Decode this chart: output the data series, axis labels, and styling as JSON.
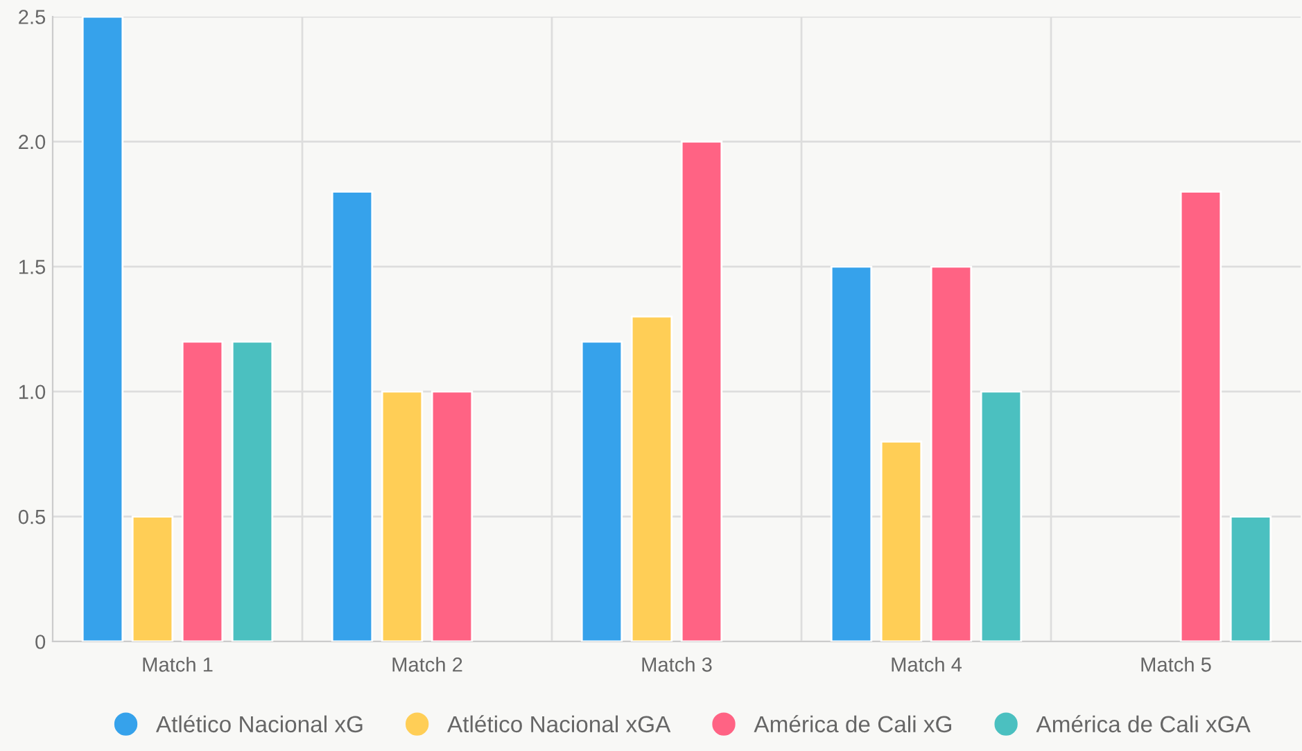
{
  "chart_data": {
    "type": "bar",
    "categories": [
      "Match 1",
      "Match 2",
      "Match 3",
      "Match 4",
      "Match 5"
    ],
    "series": [
      {
        "name": "Atlético Nacional xG",
        "color": "#36a2eb",
        "values": [
          2.5,
          1.8,
          1.2,
          1.5,
          null
        ]
      },
      {
        "name": "Atlético Nacional xGA",
        "color": "#ffce56",
        "values": [
          0.5,
          1.0,
          1.3,
          0.8,
          null
        ]
      },
      {
        "name": "América de Cali xG",
        "color": "#ff6384",
        "values": [
          1.2,
          1.0,
          2.0,
          1.5,
          1.8
        ]
      },
      {
        "name": "América de Cali xGA",
        "color": "#4bc0c0",
        "values": [
          1.2,
          null,
          null,
          1.0,
          0.5
        ]
      }
    ],
    "ylim": [
      0,
      2.5
    ],
    "yticks": [
      {
        "value": 0,
        "label": "0"
      },
      0.5,
      {
        "value": 1,
        "label": "1.0"
      },
      1.5,
      {
        "value": 2,
        "label": "2.0"
      },
      2.5
    ],
    "grid": true,
    "legend": "bottom"
  }
}
